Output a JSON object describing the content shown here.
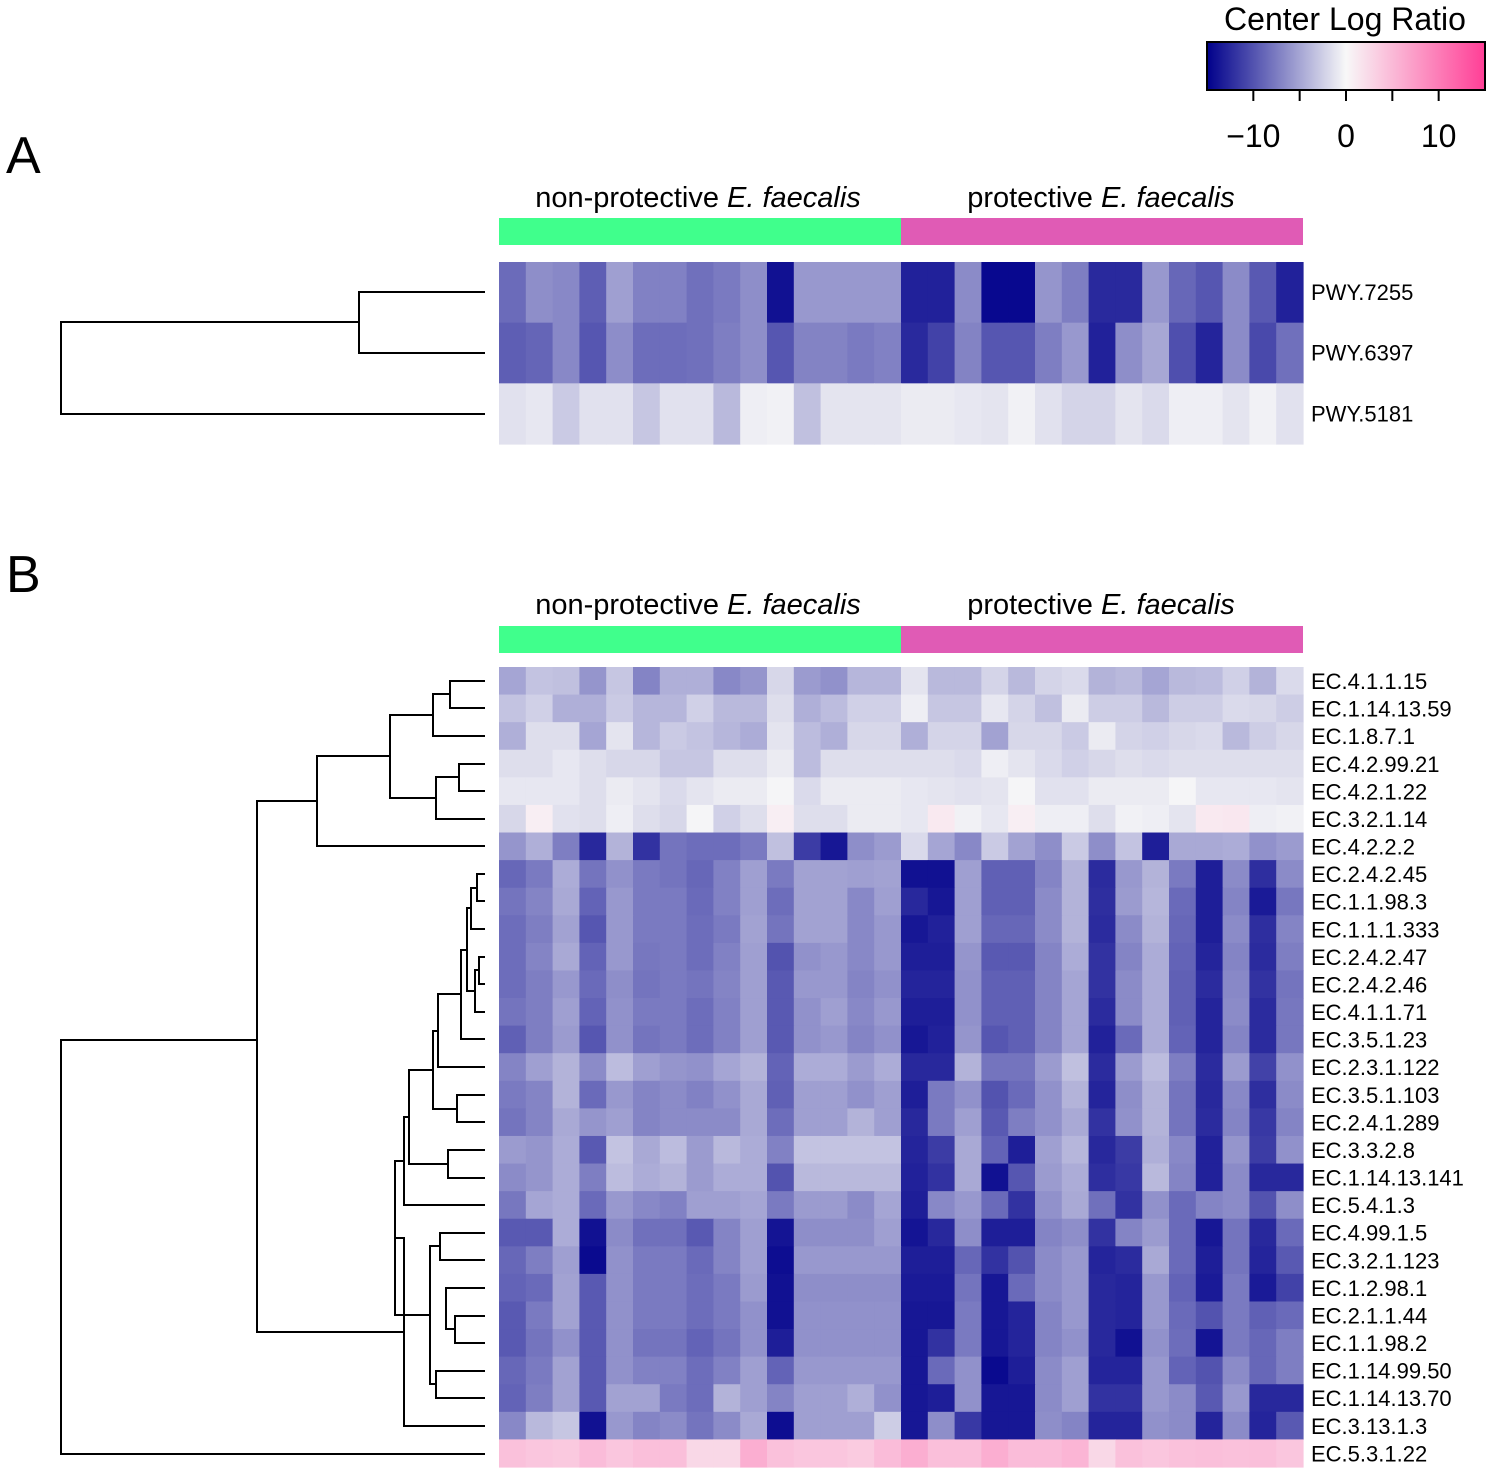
{
  "legend": {
    "title": "Center Log Ratio",
    "min": -15,
    "max": 15,
    "ticks": [
      {
        "value": -10,
        "label": "−10"
      },
      {
        "value": -5,
        "label": ""
      },
      {
        "value": 0,
        "label": "0"
      },
      {
        "value": 5,
        "label": ""
      },
      {
        "value": 10,
        "label": "10"
      }
    ],
    "colors": {
      "low": "#00008B",
      "mid": "#F8F8F8",
      "high": "#FF3E96"
    }
  },
  "groups": [
    {
      "name_prefix": "non-protective ",
      "name_italic": "E. faecalis",
      "color": "#40FF8C",
      "n": 15
    },
    {
      "name_prefix": "protective ",
      "name_italic": "E. faecalis",
      "color": "#E05BB5",
      "n": 15
    }
  ],
  "chart_data": [
    {
      "type": "heatmap",
      "panel": "A",
      "title": "",
      "xlabel": "",
      "ylabel": "",
      "value_range": [
        -15,
        15
      ],
      "rows": [
        "PWY.7255",
        "PWY.6397",
        "PWY.5181"
      ],
      "values": [
        [
          -8.5,
          -6.4,
          -6.8,
          -9.3,
          -5.4,
          -7.2,
          -7.2,
          -8.2,
          -7.6,
          -6.4,
          -14.0,
          -5.8,
          -5.8,
          -5.8,
          -5.8,
          -13.0,
          -13.0,
          -6.6,
          -14.5,
          -14.5,
          -6.0,
          -7.4,
          -12.5,
          -12.5,
          -5.8,
          -8.8,
          -9.8,
          -6.6,
          -9.6,
          -13.0
        ],
        [
          -9.3,
          -8.9,
          -6.8,
          -9.8,
          -6.5,
          -8.4,
          -8.4,
          -8.2,
          -7.4,
          -6.4,
          -9.8,
          -7.1,
          -7.1,
          -7.6,
          -7.2,
          -12.5,
          -11.0,
          -7.1,
          -9.8,
          -9.8,
          -7.4,
          -5.8,
          -13.0,
          -6.4,
          -4.9,
          -10.2,
          -12.8,
          -6.6,
          -10.6,
          -8.2
        ],
        [
          -1.4,
          -1.0,
          -2.8,
          -1.4,
          -1.4,
          -3.0,
          -1.4,
          -1.4,
          -3.8,
          -0.6,
          -0.4,
          -3.4,
          -1.2,
          -1.2,
          -1.2,
          -0.8,
          -0.8,
          -1.0,
          -1.2,
          -0.4,
          -1.4,
          -2.2,
          -2.2,
          -1.2,
          -1.8,
          -0.6,
          -0.6,
          -1.2,
          -0.4,
          -1.4
        ]
      ]
    },
    {
      "type": "heatmap",
      "panel": "B",
      "title": "",
      "xlabel": "",
      "ylabel": "",
      "value_range": [
        -15,
        15
      ],
      "rows": [
        "EC.4.1.1.15",
        "EC.1.14.13.59",
        "EC.1.8.7.1",
        "EC.4.2.99.21",
        "EC.4.2.1.22",
        "EC.3.2.1.14",
        "EC.4.2.2.2",
        "EC.2.4.2.45",
        "EC.1.1.98.3",
        "EC.1.1.1.333",
        "EC.2.4.2.47",
        "EC.2.4.2.46",
        "EC.4.1.1.71",
        "EC.3.5.1.23",
        "EC.2.3.1.122",
        "EC.3.5.1.103",
        "EC.2.4.1.289",
        "EC.3.3.2.8",
        "EC.1.14.13.141",
        "EC.5.4.1.3",
        "EC.4.99.1.5",
        "EC.3.2.1.123",
        "EC.1.2.98.1",
        "EC.2.1.1.44",
        "EC.1.1.98.2",
        "EC.1.14.99.50",
        "EC.1.14.13.70",
        "EC.3.13.1.3",
        "EC.5.3.1.22"
      ],
      "values": [
        [
          -5.0,
          -3.2,
          -3.4,
          -6.0,
          -3.0,
          -7.0,
          -4.4,
          -4.4,
          -6.8,
          -6.0,
          -2.0,
          -5.6,
          -6.2,
          -4.0,
          -4.0,
          -1.2,
          -3.8,
          -3.8,
          -2.2,
          -3.8,
          -2.2,
          -1.8,
          -4.2,
          -3.8,
          -5.0,
          -3.8,
          -3.6,
          -2.4,
          -4.2,
          -1.8
        ],
        [
          -3.2,
          -2.4,
          -4.4,
          -4.4,
          -2.8,
          -4.0,
          -4.0,
          -2.4,
          -3.8,
          -3.8,
          -1.6,
          -4.4,
          -3.6,
          -2.4,
          -2.4,
          -0.6,
          -3.0,
          -3.0,
          -1.0,
          -2.2,
          -3.4,
          -0.8,
          -2.6,
          -2.6,
          -3.8,
          -2.6,
          -2.6,
          -1.8,
          -2.0,
          -2.6
        ],
        [
          -4.4,
          -1.6,
          -1.6,
          -5.0,
          -1.2,
          -4.0,
          -2.8,
          -3.2,
          -4.0,
          -4.6,
          -1.2,
          -3.6,
          -4.4,
          -2.0,
          -2.0,
          -4.4,
          -2.2,
          -2.2,
          -5.2,
          -2.0,
          -2.0,
          -2.8,
          -0.8,
          -2.2,
          -2.4,
          -2.0,
          -1.8,
          -3.8,
          -2.6,
          -2.0
        ],
        [
          -1.6,
          -1.6,
          -1.0,
          -1.6,
          -2.0,
          -2.0,
          -3.0,
          -3.0,
          -1.6,
          -1.6,
          -0.8,
          -3.6,
          -1.6,
          -1.6,
          -1.6,
          -1.6,
          -1.6,
          -1.8,
          -0.6,
          -1.2,
          -1.8,
          -2.4,
          -2.0,
          -1.6,
          -1.8,
          -1.6,
          -1.6,
          -1.6,
          -1.6,
          -1.6
        ],
        [
          -1.0,
          -1.0,
          -1.0,
          -1.6,
          -0.8,
          -1.2,
          -1.8,
          -1.2,
          -0.8,
          -0.8,
          -0.2,
          -1.8,
          -0.8,
          -0.8,
          -0.8,
          -1.0,
          -1.2,
          -1.4,
          -1.2,
          -0.2,
          -1.4,
          -1.4,
          -0.8,
          -0.8,
          -0.8,
          -0.2,
          -1.0,
          -1.0,
          -1.0,
          -1.2
        ],
        [
          -2.0,
          0.8,
          -1.4,
          -1.6,
          -0.6,
          -1.6,
          -2.0,
          -0.2,
          -2.4,
          -1.6,
          0.8,
          -1.6,
          -1.6,
          -0.8,
          -0.8,
          -1.0,
          1.2,
          -0.4,
          -1.0,
          0.8,
          -0.6,
          -0.6,
          -1.6,
          -0.4,
          -0.6,
          -1.2,
          1.2,
          1.4,
          -0.6,
          -0.4
        ],
        [
          -6.0,
          -4.4,
          -7.4,
          -12.6,
          -4.2,
          -12.0,
          -8.0,
          -8.4,
          -8.4,
          -7.6,
          -3.4,
          -11.4,
          -13.6,
          -6.4,
          -5.6,
          -1.8,
          -5.0,
          -6.8,
          -2.8,
          -5.2,
          -6.4,
          -2.8,
          -6.4,
          -3.2,
          -13.2,
          -4.8,
          -4.8,
          -4.6,
          -6.2,
          -5.6
        ],
        [
          -8.8,
          -7.6,
          -4.6,
          -8.0,
          -6.2,
          -7.6,
          -8.0,
          -8.8,
          -7.2,
          -5.4,
          -7.6,
          -5.2,
          -5.2,
          -5.4,
          -5.2,
          -14.0,
          -14.0,
          -5.4,
          -9.2,
          -9.2,
          -7.0,
          -4.2,
          -12.4,
          -5.8,
          -4.2,
          -7.6,
          -13.2,
          -6.6,
          -12.2,
          -6.6
        ],
        [
          -8.0,
          -7.0,
          -4.8,
          -9.0,
          -5.8,
          -7.6,
          -7.6,
          -8.6,
          -7.2,
          -5.4,
          -8.4,
          -5.2,
          -5.2,
          -6.8,
          -5.4,
          -12.6,
          -13.6,
          -5.4,
          -9.2,
          -9.2,
          -6.6,
          -4.2,
          -12.2,
          -5.6,
          -4.0,
          -8.6,
          -13.2,
          -7.0,
          -13.4,
          -7.8
        ],
        [
          -8.4,
          -7.4,
          -5.2,
          -9.8,
          -5.8,
          -7.6,
          -7.6,
          -8.4,
          -7.6,
          -5.2,
          -8.0,
          -5.2,
          -5.2,
          -6.8,
          -5.8,
          -13.6,
          -13.0,
          -5.4,
          -8.8,
          -8.8,
          -6.6,
          -4.2,
          -12.4,
          -6.6,
          -4.2,
          -8.8,
          -13.2,
          -6.6,
          -12.2,
          -7.0
        ],
        [
          -8.4,
          -7.0,
          -4.8,
          -9.0,
          -5.8,
          -7.8,
          -7.6,
          -8.4,
          -7.2,
          -5.4,
          -10.0,
          -6.2,
          -5.8,
          -6.8,
          -5.8,
          -13.2,
          -13.2,
          -6.0,
          -9.6,
          -9.6,
          -7.0,
          -4.6,
          -12.0,
          -7.0,
          -4.6,
          -9.0,
          -12.8,
          -7.0,
          -12.4,
          -7.4
        ],
        [
          -8.4,
          -7.4,
          -5.8,
          -8.6,
          -6.4,
          -8.0,
          -7.6,
          -8.0,
          -7.0,
          -5.4,
          -9.6,
          -5.8,
          -5.8,
          -7.0,
          -6.2,
          -12.8,
          -12.8,
          -6.2,
          -9.2,
          -9.2,
          -7.0,
          -5.0,
          -12.0,
          -6.6,
          -4.6,
          -9.2,
          -12.4,
          -6.8,
          -12.0,
          -8.0
        ],
        [
          -8.0,
          -7.4,
          -5.4,
          -9.0,
          -6.2,
          -7.6,
          -7.6,
          -8.4,
          -7.2,
          -5.4,
          -9.6,
          -6.2,
          -5.4,
          -6.8,
          -5.8,
          -13.2,
          -13.2,
          -6.2,
          -9.2,
          -9.2,
          -7.0,
          -5.0,
          -12.4,
          -6.6,
          -4.6,
          -9.2,
          -12.8,
          -6.6,
          -12.4,
          -7.8
        ],
        [
          -9.2,
          -7.4,
          -5.6,
          -9.8,
          -6.2,
          -8.0,
          -7.6,
          -8.4,
          -7.2,
          -5.4,
          -9.6,
          -6.2,
          -5.8,
          -7.0,
          -6.2,
          -13.6,
          -13.0,
          -6.0,
          -9.8,
          -9.2,
          -7.0,
          -5.0,
          -13.0,
          -8.6,
          -4.6,
          -9.0,
          -12.8,
          -7.0,
          -12.4,
          -7.8
        ],
        [
          -7.0,
          -5.4,
          -4.2,
          -6.6,
          -3.6,
          -5.4,
          -6.0,
          -6.2,
          -5.0,
          -4.2,
          -9.0,
          -4.6,
          -4.6,
          -5.6,
          -4.6,
          -12.6,
          -12.6,
          -4.2,
          -8.0,
          -8.0,
          -5.6,
          -3.4,
          -12.4,
          -5.6,
          -3.6,
          -7.4,
          -12.4,
          -5.6,
          -11.0,
          -6.2
        ],
        [
          -7.6,
          -7.0,
          -4.2,
          -8.6,
          -5.8,
          -7.0,
          -6.6,
          -7.2,
          -6.2,
          -4.8,
          -9.2,
          -5.4,
          -5.4,
          -6.2,
          -5.4,
          -13.2,
          -7.6,
          -6.2,
          -10.0,
          -8.6,
          -6.2,
          -4.2,
          -12.8,
          -6.4,
          -4.2,
          -8.0,
          -12.6,
          -6.8,
          -12.2,
          -6.6
        ],
        [
          -8.0,
          -7.0,
          -4.8,
          -6.0,
          -5.4,
          -7.0,
          -6.6,
          -6.6,
          -6.6,
          -4.8,
          -8.4,
          -5.4,
          -5.4,
          -4.2,
          -5.4,
          -12.6,
          -7.6,
          -5.4,
          -9.6,
          -7.4,
          -6.2,
          -4.8,
          -12.0,
          -6.2,
          -4.2,
          -8.0,
          -12.4,
          -7.0,
          -11.6,
          -7.0
        ],
        [
          -5.6,
          -6.0,
          -4.6,
          -9.6,
          -3.2,
          -4.8,
          -3.6,
          -5.6,
          -3.8,
          -4.6,
          -7.2,
          -3.2,
          -3.2,
          -3.2,
          -3.2,
          -12.8,
          -11.4,
          -4.8,
          -9.0,
          -13.2,
          -5.4,
          -4.0,
          -12.6,
          -11.4,
          -4.4,
          -6.8,
          -13.0,
          -6.0,
          -11.4,
          -6.2
        ],
        [
          -6.6,
          -6.0,
          -4.6,
          -7.4,
          -3.6,
          -4.6,
          -4.2,
          -5.6,
          -4.6,
          -4.6,
          -10.0,
          -3.8,
          -3.8,
          -3.8,
          -3.8,
          -13.0,
          -12.0,
          -4.8,
          -14.0,
          -9.8,
          -5.6,
          -4.6,
          -12.2,
          -11.6,
          -3.8,
          -7.0,
          -13.0,
          -6.6,
          -12.6,
          -12.6
        ],
        [
          -7.8,
          -5.0,
          -4.6,
          -8.6,
          -5.8,
          -6.8,
          -7.2,
          -5.4,
          -5.4,
          -5.0,
          -7.6,
          -5.6,
          -5.6,
          -6.6,
          -5.0,
          -13.2,
          -6.8,
          -5.8,
          -8.6,
          -12.0,
          -6.2,
          -4.8,
          -8.2,
          -12.0,
          -6.2,
          -8.6,
          -7.0,
          -6.6,
          -10.0,
          -6.4
        ],
        [
          -9.6,
          -9.6,
          -4.6,
          -14.0,
          -6.6,
          -8.2,
          -8.2,
          -9.6,
          -7.0,
          -5.4,
          -13.8,
          -6.4,
          -6.4,
          -6.4,
          -5.4,
          -13.8,
          -12.6,
          -6.4,
          -13.2,
          -13.2,
          -7.0,
          -6.4,
          -12.0,
          -7.0,
          -5.6,
          -8.6,
          -13.6,
          -8.0,
          -12.6,
          -8.6
        ],
        [
          -8.8,
          -7.4,
          -5.4,
          -14.4,
          -6.2,
          -7.6,
          -7.6,
          -8.6,
          -7.0,
          -5.4,
          -14.2,
          -5.8,
          -5.8,
          -5.8,
          -5.8,
          -13.2,
          -13.2,
          -8.8,
          -12.0,
          -10.0,
          -6.6,
          -5.8,
          -12.8,
          -12.4,
          -4.8,
          -8.6,
          -13.2,
          -8.0,
          -12.8,
          -9.6
        ],
        [
          -9.0,
          -8.6,
          -5.2,
          -9.6,
          -6.2,
          -7.6,
          -7.6,
          -8.4,
          -7.6,
          -5.6,
          -14.0,
          -6.4,
          -6.4,
          -6.4,
          -6.4,
          -13.4,
          -13.4,
          -8.0,
          -13.6,
          -8.6,
          -6.6,
          -5.8,
          -12.6,
          -12.8,
          -5.8,
          -9.0,
          -13.4,
          -7.6,
          -13.4,
          -11.0
        ],
        [
          -9.6,
          -7.6,
          -5.2,
          -9.6,
          -6.2,
          -7.6,
          -7.6,
          -8.4,
          -7.6,
          -6.2,
          -14.0,
          -6.2,
          -6.2,
          -6.2,
          -6.2,
          -13.6,
          -13.6,
          -7.6,
          -13.6,
          -12.8,
          -7.0,
          -5.8,
          -12.6,
          -12.8,
          -5.8,
          -8.6,
          -10.0,
          -7.6,
          -9.2,
          -8.6
        ],
        [
          -9.6,
          -8.0,
          -6.2,
          -9.6,
          -6.2,
          -8.0,
          -8.0,
          -9.0,
          -8.0,
          -6.2,
          -13.2,
          -6.2,
          -6.2,
          -6.2,
          -6.2,
          -13.6,
          -12.0,
          -7.6,
          -13.6,
          -12.8,
          -7.0,
          -6.2,
          -12.6,
          -14.0,
          -6.2,
          -8.4,
          -13.8,
          -7.6,
          -8.8,
          -7.4
        ],
        [
          -8.8,
          -7.6,
          -5.2,
          -9.6,
          -6.2,
          -7.2,
          -7.2,
          -8.4,
          -7.2,
          -5.4,
          -9.0,
          -5.8,
          -5.8,
          -5.8,
          -5.8,
          -13.6,
          -8.6,
          -6.2,
          -14.4,
          -13.2,
          -6.6,
          -5.4,
          -12.8,
          -12.8,
          -5.8,
          -9.0,
          -10.0,
          -6.6,
          -8.8,
          -7.4
        ],
        [
          -9.0,
          -7.4,
          -5.2,
          -9.6,
          -5.2,
          -5.2,
          -7.6,
          -8.4,
          -4.2,
          -5.4,
          -7.0,
          -5.4,
          -5.4,
          -4.4,
          -6.2,
          -13.6,
          -13.2,
          -6.2,
          -13.6,
          -13.6,
          -6.6,
          -5.4,
          -12.0,
          -12.0,
          -5.8,
          -6.6,
          -9.6,
          -5.8,
          -12.6,
          -12.6
        ],
        [
          -6.8,
          -3.8,
          -3.0,
          -14.0,
          -5.8,
          -7.0,
          -6.6,
          -8.0,
          -6.6,
          -4.8,
          -14.2,
          -5.4,
          -5.4,
          -5.4,
          -2.6,
          -13.6,
          -6.4,
          -11.6,
          -13.6,
          -13.6,
          -6.4,
          -7.0,
          -12.8,
          -12.8,
          -6.2,
          -6.6,
          -12.8,
          -6.6,
          -12.8,
          -9.6
        ],
        [
          4.4,
          4.0,
          3.8,
          4.8,
          4.0,
          4.6,
          4.6,
          2.6,
          2.6,
          6.0,
          4.4,
          4.0,
          4.0,
          3.6,
          4.8,
          6.0,
          4.6,
          4.6,
          6.0,
          4.8,
          4.8,
          5.4,
          2.6,
          4.4,
          4.0,
          4.4,
          4.6,
          4.4,
          4.6,
          4.0
        ]
      ]
    }
  ]
}
